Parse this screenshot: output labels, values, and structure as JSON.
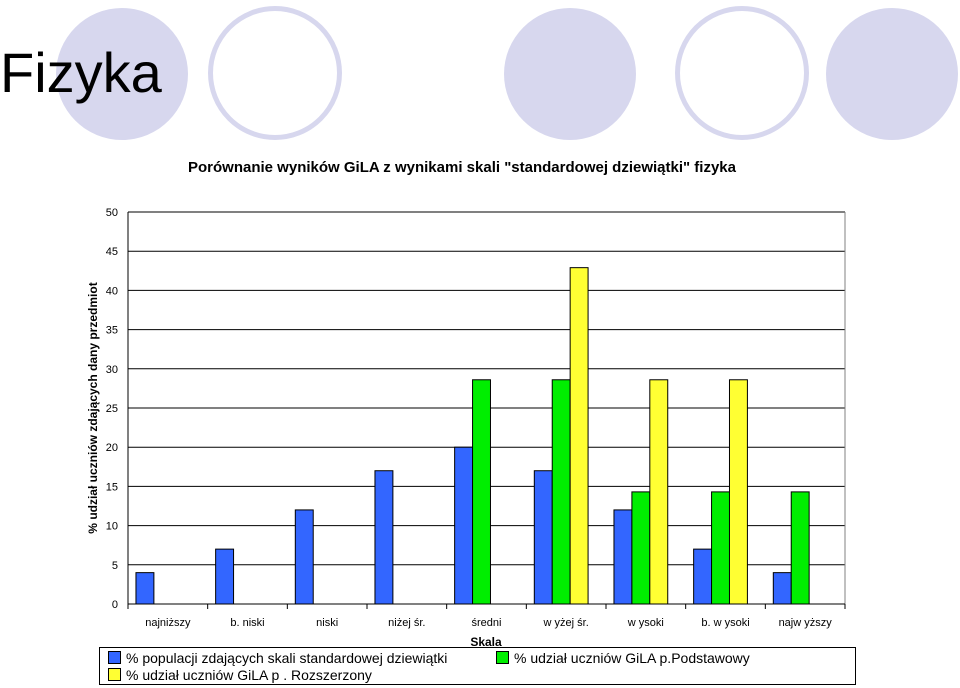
{
  "slide": {
    "title": "Fizyka"
  },
  "decor": {
    "fill_color": "#d7d7ee"
  },
  "chart_data": {
    "type": "bar",
    "title": "Porównanie wyników GiLA z wynikami skali \"standardowej dziewiątki\" fizyka",
    "xlabel": "Skala",
    "ylabel": "% udział uczniów zdających dany przedmiot",
    "ylim": [
      0,
      50
    ],
    "yticks": [
      0,
      5,
      10,
      15,
      20,
      25,
      30,
      35,
      40,
      45,
      50
    ],
    "grid": true,
    "legend_position": "bottom",
    "categories": [
      "najniższy",
      "b. niski",
      "niski",
      "niżej śr.",
      "średni",
      "w yżej śr.",
      "w ysoki",
      "b. w ysoki",
      "najw yższy"
    ],
    "series": [
      {
        "name": "% populacji zdających skali standardowej dziewiątki",
        "color": "#3366ff",
        "values": [
          4,
          7,
          12,
          17,
          20,
          17,
          12,
          7,
          4
        ]
      },
      {
        "name": "% udział uczniów GiLA p.Podstawowy",
        "color": "#00ee00",
        "values": [
          null,
          null,
          null,
          null,
          28.6,
          28.6,
          14.3,
          14.3,
          14.3
        ]
      },
      {
        "name": "% udział uczniów GiLA p . Rozszerzony",
        "color": "#ffff33",
        "values": [
          null,
          null,
          null,
          null,
          null,
          42.9,
          28.6,
          28.6,
          null
        ]
      }
    ]
  }
}
